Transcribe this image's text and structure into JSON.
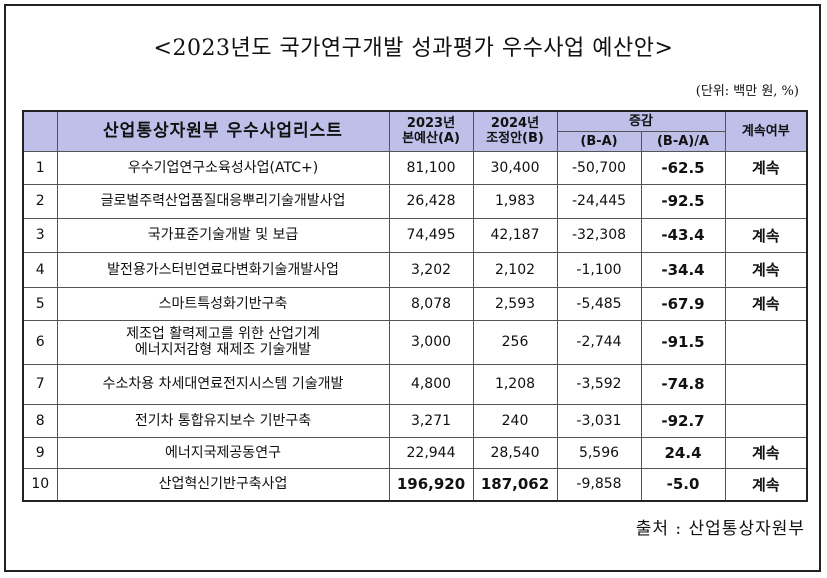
{
  "title": "<2023년도 국가연구개발 성과평가 우수사업 예산안>",
  "unit": "(단위: 백만 원, %)",
  "headers": {
    "list_title": "산업통상자원부 우수사업리스트",
    "col_2023": "2023년\n본예산(A)",
    "col_2024": "2024년\n조정안(B)",
    "change": "증감",
    "diff": "(B-A)",
    "ratio": "(B-A)/A",
    "continue": "계속여부"
  },
  "rows": [
    {
      "no": "1",
      "name": "우수기업연구소육성사업(ATC+)",
      "a": "81,100",
      "b": "30,400",
      "diff": "-50,700",
      "ratio": "-62.5",
      "cont": "계속"
    },
    {
      "no": "2",
      "name": "글로벌주력산업품질대응뿌리기술개발사업",
      "a": "26,428",
      "b": "1,983",
      "diff": "-24,445",
      "ratio": "-92.5",
      "cont": ""
    },
    {
      "no": "3",
      "name": "국가표준기술개발 및 보급",
      "a": "74,495",
      "b": "42,187",
      "diff": "-32,308",
      "ratio": "-43.4",
      "cont": "계속"
    },
    {
      "no": "4",
      "name": "발전용가스터빈연료다변화기술개발사업",
      "a": "3,202",
      "b": "2,102",
      "diff": "-1,100",
      "ratio": "-34.4",
      "cont": "계속"
    },
    {
      "no": "5",
      "name": "스마트특성화기반구축",
      "a": "8,078",
      "b": "2,593",
      "diff": "-5,485",
      "ratio": "-67.9",
      "cont": "계속"
    },
    {
      "no": "6",
      "name": "제조업 활력제고를 위한 산업기계\n에너지저감형 재제조 기술개발",
      "a": "3,000",
      "b": "256",
      "diff": "-2,744",
      "ratio": "-91.5",
      "cont": ""
    },
    {
      "no": "7",
      "name": "수소차용 차세대연료전지시스템 기술개발",
      "a": "4,800",
      "b": "1,208",
      "diff": "-3,592",
      "ratio": "-74.8",
      "cont": ""
    },
    {
      "no": "8",
      "name": "전기차 통합유지보수 기반구축",
      "a": "3,271",
      "b": "240",
      "diff": "-3,031",
      "ratio": "-92.7",
      "cont": ""
    },
    {
      "no": "9",
      "name": "에너지국제공동연구",
      "a": "22,944",
      "b": "28,540",
      "diff": "5,596",
      "ratio": "24.4",
      "cont": "계속"
    },
    {
      "no": "10",
      "name": "산업혁신기반구축사업",
      "a": "196,920",
      "b": "187,062",
      "diff": "-9,858",
      "ratio": "-5.0",
      "cont": "계속"
    }
  ],
  "source": "출처 : 산업통상자원부"
}
